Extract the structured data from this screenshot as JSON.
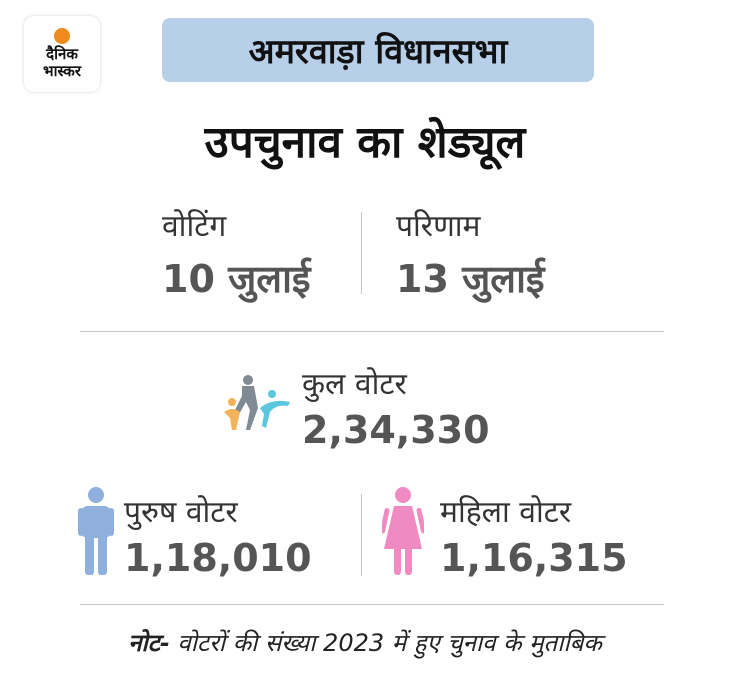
{
  "logo": {
    "line1": "दैनिक",
    "line2": "भास्कर"
  },
  "banner": {
    "text": "अमरवाड़ा विधानसभा"
  },
  "title": "उपचुनाव का शेड्यूल",
  "schedule": {
    "voting_label": "वोटिंग",
    "voting_date": "10 जुलाई",
    "result_label": "परिणाम",
    "result_date": "13 जुलाई"
  },
  "total": {
    "label": "कुल वोटर",
    "value": "2,34,330",
    "icon": "people-group-icon"
  },
  "male": {
    "label": "पुरुष वोटर",
    "value": "1,18,010",
    "icon": "male-person-icon"
  },
  "female": {
    "label": "महिला वोटर",
    "value": "1,16,315",
    "icon": "female-person-icon"
  },
  "note": {
    "prefix": "नोट-",
    "text": " वोटरों की संख्या 2023 में हुए चुनाव के मुताबिक"
  },
  "colors": {
    "banner": "#b7cfe9",
    "male_icon": "#8fb0dc",
    "female_icon": "#f08ac3",
    "logo_dot": "#f08a1c"
  }
}
